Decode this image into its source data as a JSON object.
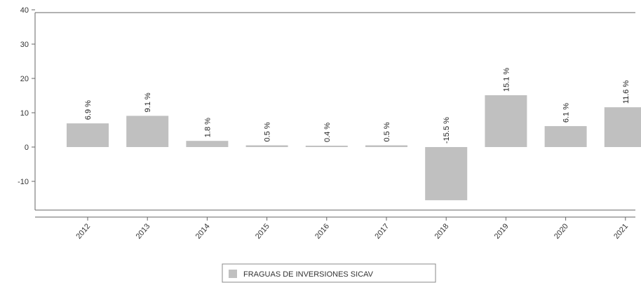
{
  "chart_data": {
    "type": "bar",
    "categories": [
      "2012",
      "2013",
      "2014",
      "2015",
      "2016",
      "2017",
      "2018",
      "2019",
      "2020",
      "2021"
    ],
    "series": [
      {
        "name": "FRAGUAS DE INVERSIONES SICAV",
        "values": [
          6.9,
          9.1,
          1.8,
          0.5,
          0.4,
          0.5,
          -15.5,
          15.1,
          6.1,
          11.6
        ],
        "labels": [
          "6.9 %",
          "9.1 %",
          "1.8 %",
          "0.5 %",
          "0.4 %",
          "0.5 %",
          "-15.5 %",
          "15.1 %",
          "6.1 %",
          "11.6 %"
        ]
      }
    ],
    "yticks": [
      "-10",
      "0",
      "10",
      "20",
      "30",
      "40"
    ],
    "ylim": [
      -18,
      40
    ],
    "grid": false,
    "legend_position": "bottom-center",
    "colors": {
      "bar": "#c0c0c0",
      "axis": "#666666"
    }
  }
}
